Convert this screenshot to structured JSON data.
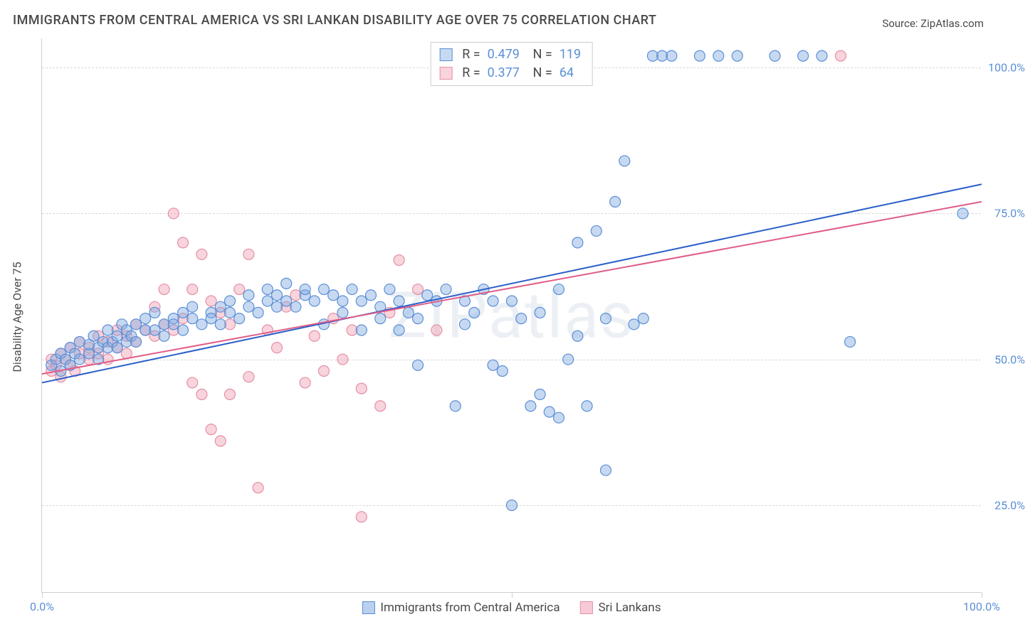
{
  "title": "IMMIGRANTS FROM CENTRAL AMERICA VS SRI LANKAN DISABILITY AGE OVER 75 CORRELATION CHART",
  "source_label": "Source:",
  "source_value": "ZipAtlas.com",
  "watermark": "ZIPatlas",
  "ylabel": "Disability Age Over 75",
  "chart": {
    "type": "scatter",
    "xlim": [
      0,
      100
    ],
    "ylim": [
      10,
      105
    ],
    "x_ticks": [
      0,
      50,
      100
    ],
    "x_tick_labels": [
      "0.0%",
      "",
      "100.0%"
    ],
    "y_gridlines": [
      25,
      50,
      75,
      100
    ],
    "y_tick_labels": [
      "25.0%",
      "50.0%",
      "75.0%",
      "100.0%"
    ],
    "grid_color": "#d8d8d8",
    "axis_color": "#cfcfcf",
    "tick_label_color": "#5b8fd6",
    "background_color": "#ffffff",
    "marker_radius": 7.5,
    "marker_stroke_width": 1.2,
    "line_width": 2,
    "series": [
      {
        "name": "Immigrants from Central America",
        "fill": "rgba(130,170,225,0.45)",
        "stroke": "#5b8fd6",
        "line_color": "#2a5fc9",
        "R": "0.479",
        "N": "119",
        "trend": {
          "x1": 0,
          "y1": 46,
          "x2": 100,
          "y2": 80
        },
        "points": [
          [
            1,
            49
          ],
          [
            1.5,
            50
          ],
          [
            2,
            48
          ],
          [
            2,
            51
          ],
          [
            2.5,
            50
          ],
          [
            3,
            52
          ],
          [
            3,
            49
          ],
          [
            3.5,
            51
          ],
          [
            4,
            50
          ],
          [
            4,
            53
          ],
          [
            5,
            51
          ],
          [
            5,
            52.5
          ],
          [
            5.5,
            54
          ],
          [
            6,
            52
          ],
          [
            6,
            50
          ],
          [
            6.5,
            53
          ],
          [
            7,
            52
          ],
          [
            7,
            55
          ],
          [
            7.5,
            53
          ],
          [
            8,
            54
          ],
          [
            8,
            52
          ],
          [
            8.5,
            56
          ],
          [
            9,
            53
          ],
          [
            9,
            55
          ],
          [
            9.5,
            54
          ],
          [
            10,
            56
          ],
          [
            10,
            53
          ],
          [
            11,
            55
          ],
          [
            11,
            57
          ],
          [
            12,
            55
          ],
          [
            12,
            58
          ],
          [
            13,
            56
          ],
          [
            13,
            54
          ],
          [
            14,
            57
          ],
          [
            14,
            56
          ],
          [
            15,
            55
          ],
          [
            15,
            58
          ],
          [
            16,
            57
          ],
          [
            16,
            59
          ],
          [
            17,
            56
          ],
          [
            18,
            58
          ],
          [
            18,
            57
          ],
          [
            19,
            59
          ],
          [
            19,
            56
          ],
          [
            20,
            58
          ],
          [
            20,
            60
          ],
          [
            21,
            57
          ],
          [
            22,
            59
          ],
          [
            22,
            61
          ],
          [
            23,
            58
          ],
          [
            24,
            60
          ],
          [
            24,
            62
          ],
          [
            25,
            59
          ],
          [
            25,
            61
          ],
          [
            26,
            60
          ],
          [
            26,
            63
          ],
          [
            27,
            59
          ],
          [
            28,
            61
          ],
          [
            28,
            62
          ],
          [
            29,
            60
          ],
          [
            30,
            62
          ],
          [
            30,
            56
          ],
          [
            31,
            61
          ],
          [
            32,
            60
          ],
          [
            32,
            58
          ],
          [
            33,
            62
          ],
          [
            34,
            60
          ],
          [
            34,
            55
          ],
          [
            35,
            61
          ],
          [
            36,
            59
          ],
          [
            36,
            57
          ],
          [
            37,
            62
          ],
          [
            38,
            60
          ],
          [
            38,
            55
          ],
          [
            39,
            58
          ],
          [
            40,
            49
          ],
          [
            40,
            57
          ],
          [
            41,
            61
          ],
          [
            42,
            60
          ],
          [
            43,
            62
          ],
          [
            44,
            42
          ],
          [
            45,
            60
          ],
          [
            45,
            56
          ],
          [
            46,
            58
          ],
          [
            47,
            62
          ],
          [
            48,
            49
          ],
          [
            48,
            60
          ],
          [
            49,
            48
          ],
          [
            50,
            60
          ],
          [
            50,
            25
          ],
          [
            51,
            57
          ],
          [
            52,
            42
          ],
          [
            53,
            58
          ],
          [
            53,
            44
          ],
          [
            54,
            41
          ],
          [
            55,
            62
          ],
          [
            55,
            40
          ],
          [
            56,
            50
          ],
          [
            57,
            70
          ],
          [
            57,
            54
          ],
          [
            58,
            42
          ],
          [
            59,
            72
          ],
          [
            60,
            31
          ],
          [
            60,
            57
          ],
          [
            61,
            77
          ],
          [
            62,
            84
          ],
          [
            63,
            56
          ],
          [
            64,
            57
          ],
          [
            65,
            102
          ],
          [
            66,
            102
          ],
          [
            67,
            102
          ],
          [
            70,
            102
          ],
          [
            72,
            102
          ],
          [
            74,
            102
          ],
          [
            78,
            102
          ],
          [
            81,
            102
          ],
          [
            83,
            102
          ],
          [
            86,
            53
          ],
          [
            98,
            75
          ]
        ]
      },
      {
        "name": "Sri Lankans",
        "fill": "rgba(240,160,180,0.45)",
        "stroke": "#e58fa5",
        "line_color": "#e15d87",
        "R": "0.377",
        "N": "64",
        "trend": {
          "x1": 0,
          "y1": 47.5,
          "x2": 100,
          "y2": 77
        },
        "points": [
          [
            1,
            48
          ],
          [
            1,
            50
          ],
          [
            1.5,
            49
          ],
          [
            2,
            51
          ],
          [
            2,
            47
          ],
          [
            2.5,
            50
          ],
          [
            3,
            49
          ],
          [
            3,
            52
          ],
          [
            3.5,
            48
          ],
          [
            4,
            51
          ],
          [
            4,
            53
          ],
          [
            5,
            50
          ],
          [
            5,
            52
          ],
          [
            6,
            51
          ],
          [
            6,
            54
          ],
          [
            7,
            53
          ],
          [
            7,
            50
          ],
          [
            8,
            55
          ],
          [
            8,
            52
          ],
          [
            9,
            54
          ],
          [
            9,
            51
          ],
          [
            10,
            56
          ],
          [
            10,
            53
          ],
          [
            11,
            55
          ],
          [
            12,
            54
          ],
          [
            12,
            59
          ],
          [
            13,
            56
          ],
          [
            13,
            62
          ],
          [
            14,
            55
          ],
          [
            14,
            75
          ],
          [
            15,
            70
          ],
          [
            15,
            57
          ],
          [
            16,
            62
          ],
          [
            16,
            46
          ],
          [
            17,
            68
          ],
          [
            17,
            44
          ],
          [
            18,
            60
          ],
          [
            18,
            38
          ],
          [
            19,
            58
          ],
          [
            19,
            36
          ],
          [
            20,
            56
          ],
          [
            20,
            44
          ],
          [
            21,
            62
          ],
          [
            22,
            68
          ],
          [
            22,
            47
          ],
          [
            23,
            28
          ],
          [
            24,
            55
          ],
          [
            25,
            52
          ],
          [
            26,
            59
          ],
          [
            27,
            61
          ],
          [
            28,
            46
          ],
          [
            29,
            54
          ],
          [
            30,
            48
          ],
          [
            31,
            57
          ],
          [
            32,
            50
          ],
          [
            33,
            55
          ],
          [
            34,
            45
          ],
          [
            34,
            23
          ],
          [
            36,
            42
          ],
          [
            37,
            58
          ],
          [
            38,
            67
          ],
          [
            40,
            62
          ],
          [
            42,
            55
          ],
          [
            85,
            102
          ]
        ]
      }
    ]
  },
  "bottom_legend": [
    {
      "label": "Immigrants from Central America",
      "fill": "rgba(130,170,225,0.55)",
      "stroke": "#5b8fd6"
    },
    {
      "label": "Sri Lankans",
      "fill": "rgba(240,160,180,0.55)",
      "stroke": "#e58fa5"
    }
  ]
}
